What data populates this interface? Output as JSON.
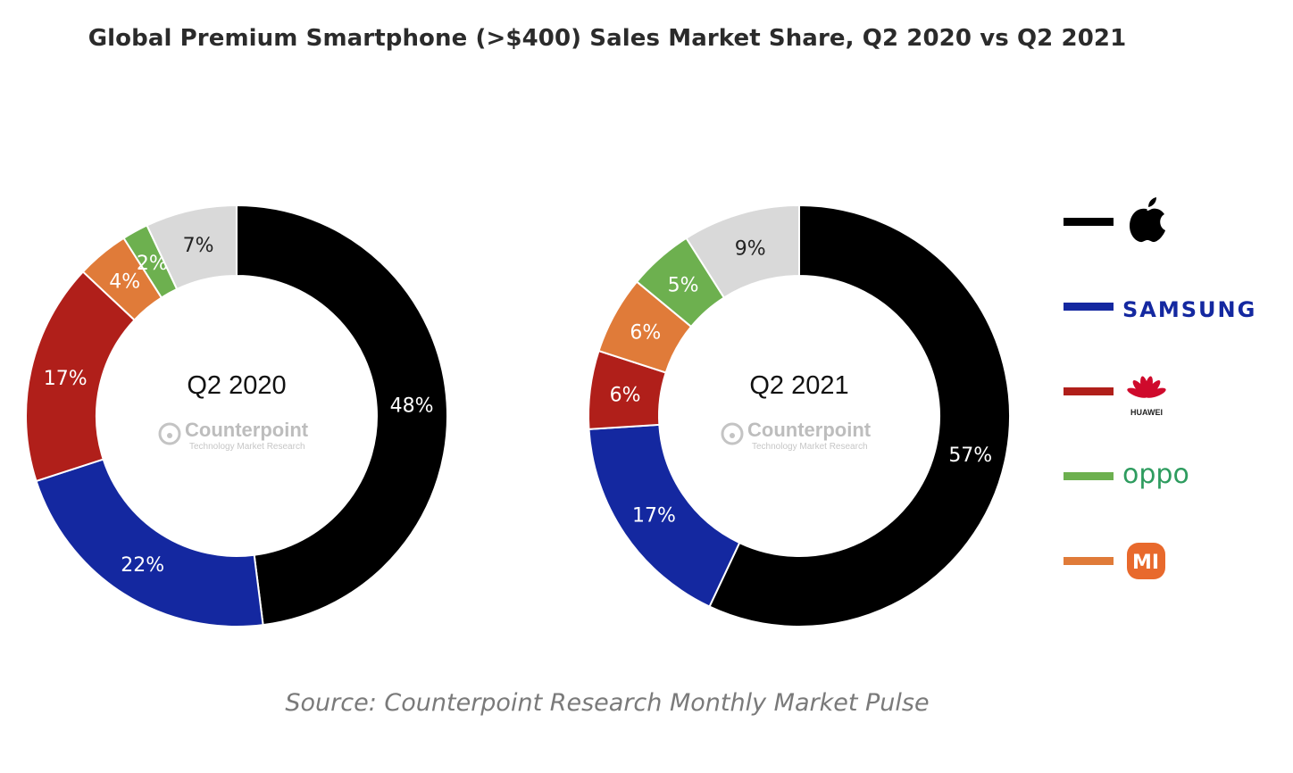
{
  "title": "Global Premium Smartphone (>$400) Sales Market Share, Q2 2020 vs Q2 2021",
  "source": "Source: Counterpoint Research Monthly Market Pulse",
  "watermark": {
    "name": "Counterpoint",
    "sub": "Technology Market Research"
  },
  "colors": {
    "apple": "#000000",
    "samsung": "#1428a0",
    "huawei": "#b01f1a",
    "oppo": "#6db04f",
    "xiaomi": "#e07b39",
    "others": "#d9d9d9"
  },
  "legend": [
    {
      "key": "apple",
      "icon": "apple-logo-icon",
      "text": ""
    },
    {
      "key": "samsung",
      "icon": "samsung-wordmark",
      "text": "SAMSUNG"
    },
    {
      "key": "huawei",
      "icon": "huawei-logo-icon",
      "text": "HUAWEI"
    },
    {
      "key": "oppo",
      "icon": "oppo-wordmark",
      "text": "oppo"
    },
    {
      "key": "xiaomi",
      "icon": "xiaomi-logo-icon",
      "text": "MI"
    }
  ],
  "chart_data": [
    {
      "type": "pie",
      "center_label": "Q2 2020",
      "slices": [
        {
          "key": "apple",
          "value": 48,
          "label": "48%"
        },
        {
          "key": "samsung",
          "value": 22,
          "label": "22%"
        },
        {
          "key": "huawei",
          "value": 17,
          "label": "17%"
        },
        {
          "key": "xiaomi",
          "value": 4,
          "label": "4%"
        },
        {
          "key": "oppo",
          "value": 2,
          "label": "2%"
        },
        {
          "key": "others",
          "value": 7,
          "label": "7%"
        }
      ]
    },
    {
      "type": "pie",
      "center_label": "Q2 2021",
      "slices": [
        {
          "key": "apple",
          "value": 57,
          "label": "57%"
        },
        {
          "key": "samsung",
          "value": 17,
          "label": "17%"
        },
        {
          "key": "huawei",
          "value": 6,
          "label": "6%"
        },
        {
          "key": "xiaomi",
          "value": 6,
          "label": "6%"
        },
        {
          "key": "oppo",
          "value": 5,
          "label": "5%"
        },
        {
          "key": "others",
          "value": 9,
          "label": "9%"
        }
      ]
    }
  ]
}
